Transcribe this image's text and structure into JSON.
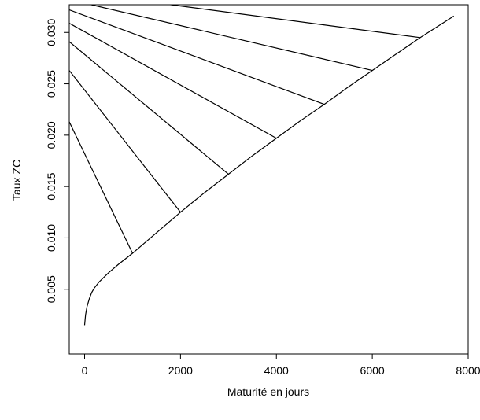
{
  "chart_data": {
    "type": "line",
    "title": "",
    "xlabel": "Maturité en jours",
    "ylabel": "Taux ZC",
    "xlim": [
      -320,
      8000
    ],
    "ylim": [
      -0.0013,
      0.0327
    ],
    "x_ticks": [
      0,
      2000,
      4000,
      6000,
      8000
    ],
    "x_tick_labels": [
      "0",
      "2000",
      "4000",
      "6000",
      "8000"
    ],
    "y_ticks": [
      0.005,
      0.01,
      0.015,
      0.02,
      0.025,
      0.03
    ],
    "y_tick_labels": [
      "0.005",
      "0.010",
      "0.015",
      "0.020",
      "0.025",
      "0.030"
    ],
    "grid": false,
    "legend": "none",
    "series": [
      {
        "x": [
          0,
          20,
          50,
          100,
          150,
          200,
          300,
          500,
          700,
          1000,
          1500,
          2000,
          2500,
          3000,
          3500,
          4000,
          4500,
          5000,
          5500,
          6000,
          6500,
          7000,
          7500,
          7700
        ],
        "y": [
          0.0015,
          0.0025,
          0.0033,
          0.0041,
          0.0047,
          0.0051,
          0.0057,
          0.0066,
          0.0074,
          0.0085,
          0.0105,
          0.0125,
          0.0144,
          0.0162,
          0.018,
          0.0197,
          0.0214,
          0.023,
          0.0247,
          0.0263,
          0.0279,
          0.0295,
          0.031,
          0.0316
        ]
      },
      {
        "x": [
          1000,
          -320
        ],
        "y": [
          0.0085,
          0.0213
        ]
      },
      {
        "x": [
          2000,
          -320
        ],
        "y": [
          0.0125,
          0.0263
        ]
      },
      {
        "x": [
          3000,
          -320
        ],
        "y": [
          0.0162,
          0.0291
        ]
      },
      {
        "x": [
          4000,
          -320
        ],
        "y": [
          0.0197,
          0.0309
        ]
      },
      {
        "x": [
          5000,
          -320
        ],
        "y": [
          0.023,
          0.0322
        ]
      },
      {
        "x": [
          6000,
          -320
        ],
        "y": [
          0.0263,
          0.0332
        ]
      },
      {
        "x": [
          7000,
          -320
        ],
        "y": [
          0.0295,
          0.034
        ]
      }
    ]
  }
}
